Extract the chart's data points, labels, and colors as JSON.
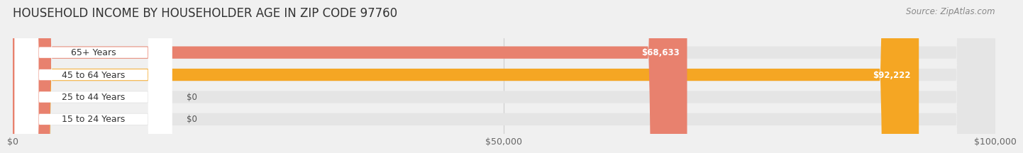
{
  "title": "HOUSEHOLD INCOME BY HOUSEHOLDER AGE IN ZIP CODE 97760",
  "source": "Source: ZipAtlas.com",
  "categories": [
    "15 to 24 Years",
    "25 to 44 Years",
    "45 to 64 Years",
    "65+ Years"
  ],
  "values": [
    0,
    0,
    92222,
    68633
  ],
  "bar_colors": [
    "#9b9fd4",
    "#f4a0b5",
    "#f5a623",
    "#e8816e"
  ],
  "bar_labels": [
    "$0",
    "$0",
    "$92,222",
    "$68,633"
  ],
  "xlim": [
    0,
    100000
  ],
  "xticks": [
    0,
    50000,
    100000
  ],
  "xticklabels": [
    "$0",
    "$50,000",
    "$100,000"
  ],
  "background_color": "#f0f0f0",
  "bar_background_color": "#e5e5e5",
  "title_fontsize": 12,
  "source_fontsize": 8.5,
  "bar_height": 0.55
}
